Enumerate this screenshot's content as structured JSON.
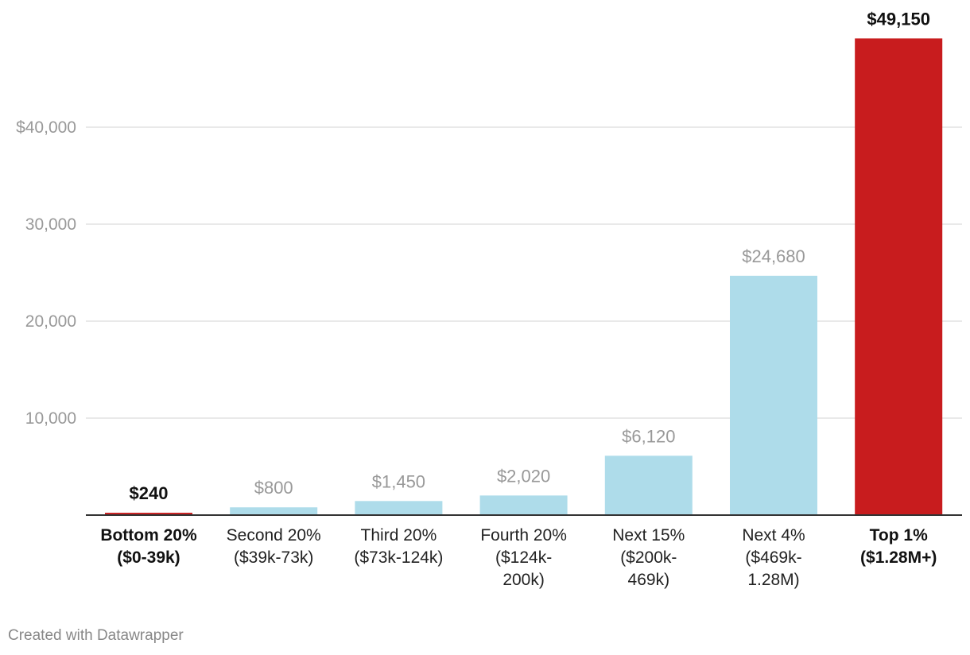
{
  "chart_data": {
    "type": "bar",
    "categories": [
      [
        "Bottom 20%",
        "($0-39k)"
      ],
      [
        "Second 20%",
        "($39k-73k)"
      ],
      [
        "Third 20%",
        "($73k-124k)"
      ],
      [
        "Fourth 20%",
        "($124k-",
        "200k)"
      ],
      [
        "Next 15%",
        "($200k-",
        "469k)"
      ],
      [
        "Next 4%",
        "($469k-",
        "1.28M)"
      ],
      [
        "Top 1%",
        "($1.28M+)"
      ]
    ],
    "values": [
      240,
      800,
      1450,
      2020,
      6120,
      24680,
      49150
    ],
    "value_labels": [
      "$240",
      "$800",
      "$1,450",
      "$2,020",
      "$6,120",
      "$24,680",
      "$49,150"
    ],
    "highlighted": [
      true,
      false,
      false,
      false,
      false,
      false,
      true
    ],
    "y_ticks": [
      10000,
      20000,
      30000,
      40000
    ],
    "y_tick_labels": [
      "10,000",
      "20,000",
      "30,000",
      "$40,000"
    ],
    "ylim": [
      0,
      50000
    ],
    "grid": true,
    "colors": {
      "highlight": "#c81c1e",
      "default": "#aedcea",
      "grid": "#e2e2e2",
      "baseline": "#333333",
      "muted_text": "#999999",
      "strong_text": "#111111"
    }
  },
  "credit": "Created with Datawrapper"
}
